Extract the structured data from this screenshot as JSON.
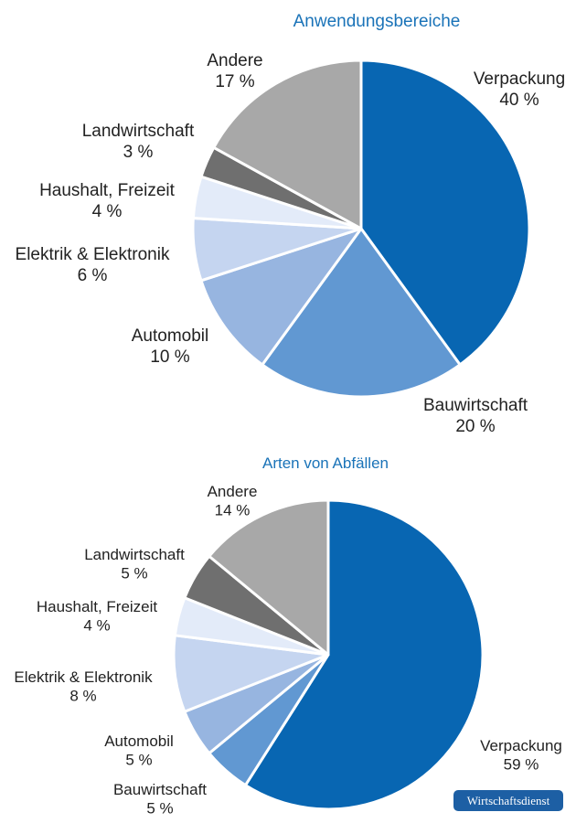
{
  "chart_data": [
    {
      "type": "pie",
      "title": "Anwendungsbereiche",
      "categories": [
        "Verpackung",
        "Bauwirtschaft",
        "Automobil",
        "Elektrik & Elektronik",
        "Haushalt, Freizeit",
        "Landwirtschaft",
        "Andere"
      ],
      "values": [
        40,
        20,
        10,
        6,
        4,
        3,
        17
      ],
      "value_labels": [
        "40 %",
        "20 %",
        "10 %",
        "6 %",
        "4 %",
        "3 %",
        "17 %"
      ],
      "colors": [
        "#0866b2",
        "#6198d2",
        "#97b5e0",
        "#c5d5f0",
        "#e3ebf9",
        "#6f6f6f",
        "#a8a8a8"
      ]
    },
    {
      "type": "pie",
      "title": "Arten von Abfällen",
      "categories": [
        "Verpackung",
        "Bauwirtschaft",
        "Automobil",
        "Elektrik & Elektronik",
        "Haushalt, Freizeit",
        "Landwirtschaft",
        "Andere"
      ],
      "values": [
        59,
        5,
        5,
        8,
        4,
        5,
        14
      ],
      "value_labels": [
        "59 %",
        "5 %",
        "5 %",
        "8 %",
        "4 %",
        "5 %",
        "14 %"
      ],
      "colors": [
        "#0866b2",
        "#6198d2",
        "#97b5e0",
        "#c5d5f0",
        "#e3ebf9",
        "#6f6f6f",
        "#a8a8a8"
      ]
    }
  ],
  "badge": {
    "text": "Wirtschaftsdienst",
    "color": "#1d5fa4"
  }
}
